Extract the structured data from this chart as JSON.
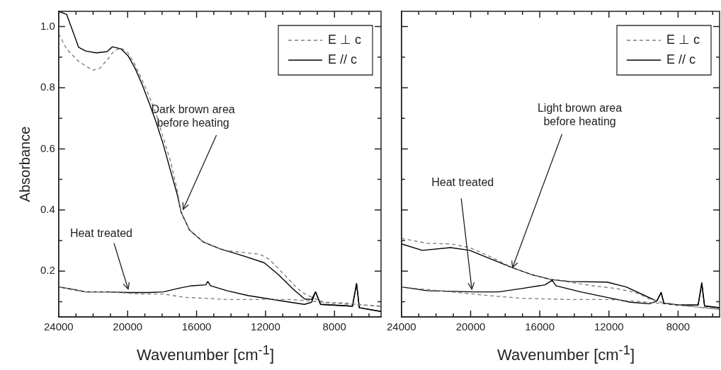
{
  "chart_data": [
    {
      "type": "line",
      "xlabel": "Wavenumber  [cm$^{-1}$]",
      "ylabel": "Absorbance",
      "xlim": [
        24000,
        5300
      ],
      "ylim": [
        0.05,
        1.05
      ],
      "xticks": [
        24000,
        {
          "value": 23000,
          "label": null
        },
        {
          "value": 22000,
          "label": null
        },
        {
          "value": 21000,
          "label": null
        },
        20000,
        {
          "value": 19000,
          "label": null
        },
        {
          "value": 18000,
          "label": null
        },
        {
          "value": 17000,
          "label": null
        },
        16000,
        {
          "value": 15000,
          "label": null
        },
        {
          "value": 14000,
          "label": null
        },
        {
          "value": 13000,
          "label": null
        },
        12000,
        {
          "value": 11000,
          "label": null
        },
        {
          "value": 10000,
          "label": null
        },
        {
          "value": 9000,
          "label": null
        },
        8000,
        {
          "value": 7000,
          "label": null
        },
        {
          "value": 6000,
          "label": null
        }
      ],
      "yticks": [
        {
          "value": 0.1,
          "label": null
        },
        0.2,
        {
          "value": 0.3,
          "label": null
        },
        0.4,
        {
          "value": 0.5,
          "label": null
        },
        0.6,
        {
          "value": 0.7,
          "label": null
        },
        0.8,
        {
          "value": 0.9,
          "label": null
        },
        {
          "value": 1,
          "label": "1.0"
        }
      ],
      "grid": false,
      "legend": "top right",
      "marker": "none",
      "series": [
        {
          "name": "E ⊥ c",
          "color": "#808080",
          "line_style": "dashed",
          "x": [
            24000,
            23540,
            22840,
            22220,
            22020,
            21610,
            21200,
            20790,
            20380,
            19980,
            19570,
            19160,
            18750,
            18340,
            17930,
            17520,
            17110,
            16900,
            16410,
            15600,
            15070,
            14450,
            13300,
            12320,
            11790,
            11260,
            10680,
            10150,
            9710,
            9100,
            8610,
            7170,
            6630,
            5300
          ],
          "values": [
            0.977,
            0.927,
            0.886,
            0.864,
            0.857,
            0.864,
            0.89,
            0.92,
            0.93,
            0.914,
            0.875,
            0.825,
            0.773,
            0.711,
            0.636,
            0.561,
            0.461,
            0.393,
            0.334,
            0.295,
            0.282,
            0.268,
            0.261,
            0.255,
            0.239,
            0.209,
            0.175,
            0.143,
            0.125,
            0.109,
            0.098,
            0.095,
            0.091,
            0.084
          ]
        },
        {
          "name": "E // c",
          "color": "#000000",
          "line_style": "solid",
          "x": [
            24000,
            23540,
            22840,
            22430,
            21820,
            21200,
            20880,
            20380,
            19980,
            19570,
            19160,
            18750,
            18340,
            17930,
            17520,
            17110,
            16900,
            16410,
            15600,
            14650,
            13300,
            12070,
            11260,
            10440,
            9740,
            9330,
            9100,
            8810,
            7170,
            6960,
            6720,
            6560,
            5300
          ],
          "values": [
            1.05,
            1.04,
            0.932,
            0.92,
            0.914,
            0.918,
            0.934,
            0.927,
            0.905,
            0.864,
            0.811,
            0.75,
            0.686,
            0.614,
            0.53,
            0.448,
            0.393,
            0.334,
            0.295,
            0.273,
            0.25,
            0.227,
            0.189,
            0.143,
            0.109,
            0.107,
            0.132,
            0.091,
            0.086,
            0.085,
            0.159,
            0.08,
            0.068
          ]
        },
        {
          "color": "#808080",
          "line_style": "dashed",
          "x": [
            24000,
            23250,
            22430,
            21200,
            19160,
            17930,
            16700,
            15470,
            14240,
            13020,
            11790,
            10560,
            9330,
            8200,
            6970,
            5300
          ],
          "values": [
            0.148,
            0.141,
            0.132,
            0.132,
            0.125,
            0.125,
            0.114,
            0.111,
            0.107,
            0.107,
            0.107,
            0.107,
            0.102,
            0.095,
            0.091,
            0.086
          ]
        },
        {
          "color": "#000000",
          "line_style": "solid",
          "x": [
            24000,
            23250,
            22430,
            21200,
            19980,
            18750,
            17930,
            17110,
            16290,
            15470,
            15350,
            15190,
            14240,
            13020,
            11790,
            10560,
            9740,
            9330,
            9100,
            8810,
            7170,
            6960,
            6720,
            6560,
            5300
          ],
          "values": [
            0.148,
            0.141,
            0.132,
            0.132,
            0.13,
            0.13,
            0.132,
            0.143,
            0.152,
            0.155,
            0.166,
            0.152,
            0.136,
            0.12,
            0.109,
            0.098,
            0.091,
            0.098,
            0.132,
            0.091,
            0.086,
            0.085,
            0.159,
            0.08,
            0.068
          ]
        }
      ],
      "annotations": [
        {
          "text": "Dark brown area before heating",
          "x": 16780,
          "y": 0.402
        },
        {
          "text": "Heat treated",
          "x": 19970,
          "y": 0.141
        }
      ]
    },
    {
      "type": "line",
      "xlabel": "Wavenumber  [cm$^{-1}$]",
      "xlim": [
        24000,
        5600
      ],
      "ylim": [
        0.05,
        1.05
      ],
      "tick_labels": "x",
      "xticks": [
        24000,
        {
          "value": 23000,
          "label": null
        },
        {
          "value": 22000,
          "label": null
        },
        {
          "value": 21000,
          "label": null
        },
        20000,
        {
          "value": 19000,
          "label": null
        },
        {
          "value": 18000,
          "label": null
        },
        {
          "value": 17000,
          "label": null
        },
        16000,
        {
          "value": 15000,
          "label": null
        },
        {
          "value": 14000,
          "label": null
        },
        {
          "value": 13000,
          "label": null
        },
        12000,
        {
          "value": 11000,
          "label": null
        },
        {
          "value": 10000,
          "label": null
        },
        {
          "value": 9000,
          "label": null
        },
        8000,
        {
          "value": 7000,
          "label": null
        },
        {
          "value": 6000,
          "label": null
        }
      ],
      "yticks": [
        {
          "value": 0.1,
          "label": null
        },
        0.2,
        {
          "value": 0.3,
          "label": null
        },
        0.4,
        {
          "value": 0.5,
          "label": null
        },
        0.6,
        {
          "value": 0.7,
          "label": null
        },
        0.8,
        {
          "value": 0.9,
          "label": null
        },
        1
      ],
      "grid": false,
      "legend": "top right",
      "marker": "none",
      "series": [
        {
          "name": "E ⊥ c",
          "color": "#808080",
          "line_style": "dashed",
          "x": [
            24000,
            22520,
            21160,
            20050,
            18980,
            17580,
            16510,
            15400,
            14290,
            12930,
            11570,
            10460,
            9640,
            8820,
            7460,
            5600
          ],
          "values": [
            0.307,
            0.291,
            0.289,
            0.277,
            0.25,
            0.211,
            0.189,
            0.173,
            0.164,
            0.152,
            0.143,
            0.13,
            0.109,
            0.095,
            0.086,
            0.075
          ]
        },
        {
          "name": "E // c",
          "color": "#000000",
          "line_style": "solid",
          "x": [
            24000,
            22800,
            21160,
            20050,
            18980,
            17580,
            16510,
            15400,
            14290,
            12110,
            11000,
            9930,
            9230,
            8980,
            8820,
            8000,
            6840,
            6630,
            6470,
            5600
          ],
          "values": [
            0.289,
            0.268,
            0.277,
            0.268,
            0.243,
            0.211,
            0.189,
            0.173,
            0.166,
            0.164,
            0.148,
            0.12,
            0.102,
            0.13,
            0.095,
            0.089,
            0.089,
            0.161,
            0.086,
            0.08
          ]
        },
        {
          "color": "#808080",
          "line_style": "dashed",
          "x": [
            24000,
            21160,
            18980,
            17050,
            14290,
            11980,
            10170,
            8820,
            5600
          ],
          "values": [
            0.148,
            0.132,
            0.12,
            0.111,
            0.107,
            0.107,
            0.1,
            0.093,
            0.075
          ]
        },
        {
          "color": "#000000",
          "line_style": "solid",
          "x": [
            24000,
            22520,
            19800,
            18400,
            17050,
            15690,
            15280,
            15070,
            13630,
            12110,
            10750,
            9640,
            9230,
            8980,
            8820,
            8000,
            6840,
            6630,
            6470,
            5600
          ],
          "values": [
            0.148,
            0.136,
            0.132,
            0.132,
            0.143,
            0.155,
            0.17,
            0.152,
            0.132,
            0.114,
            0.098,
            0.093,
            0.102,
            0.13,
            0.095,
            0.089,
            0.089,
            0.161,
            0.086,
            0.08
          ]
        }
      ],
      "annotations": [
        {
          "text": "Light brown area before heating",
          "x": 17580,
          "y": 0.211
        },
        {
          "text": "Heat treated",
          "x": 19930,
          "y": 0.141
        }
      ]
    }
  ]
}
